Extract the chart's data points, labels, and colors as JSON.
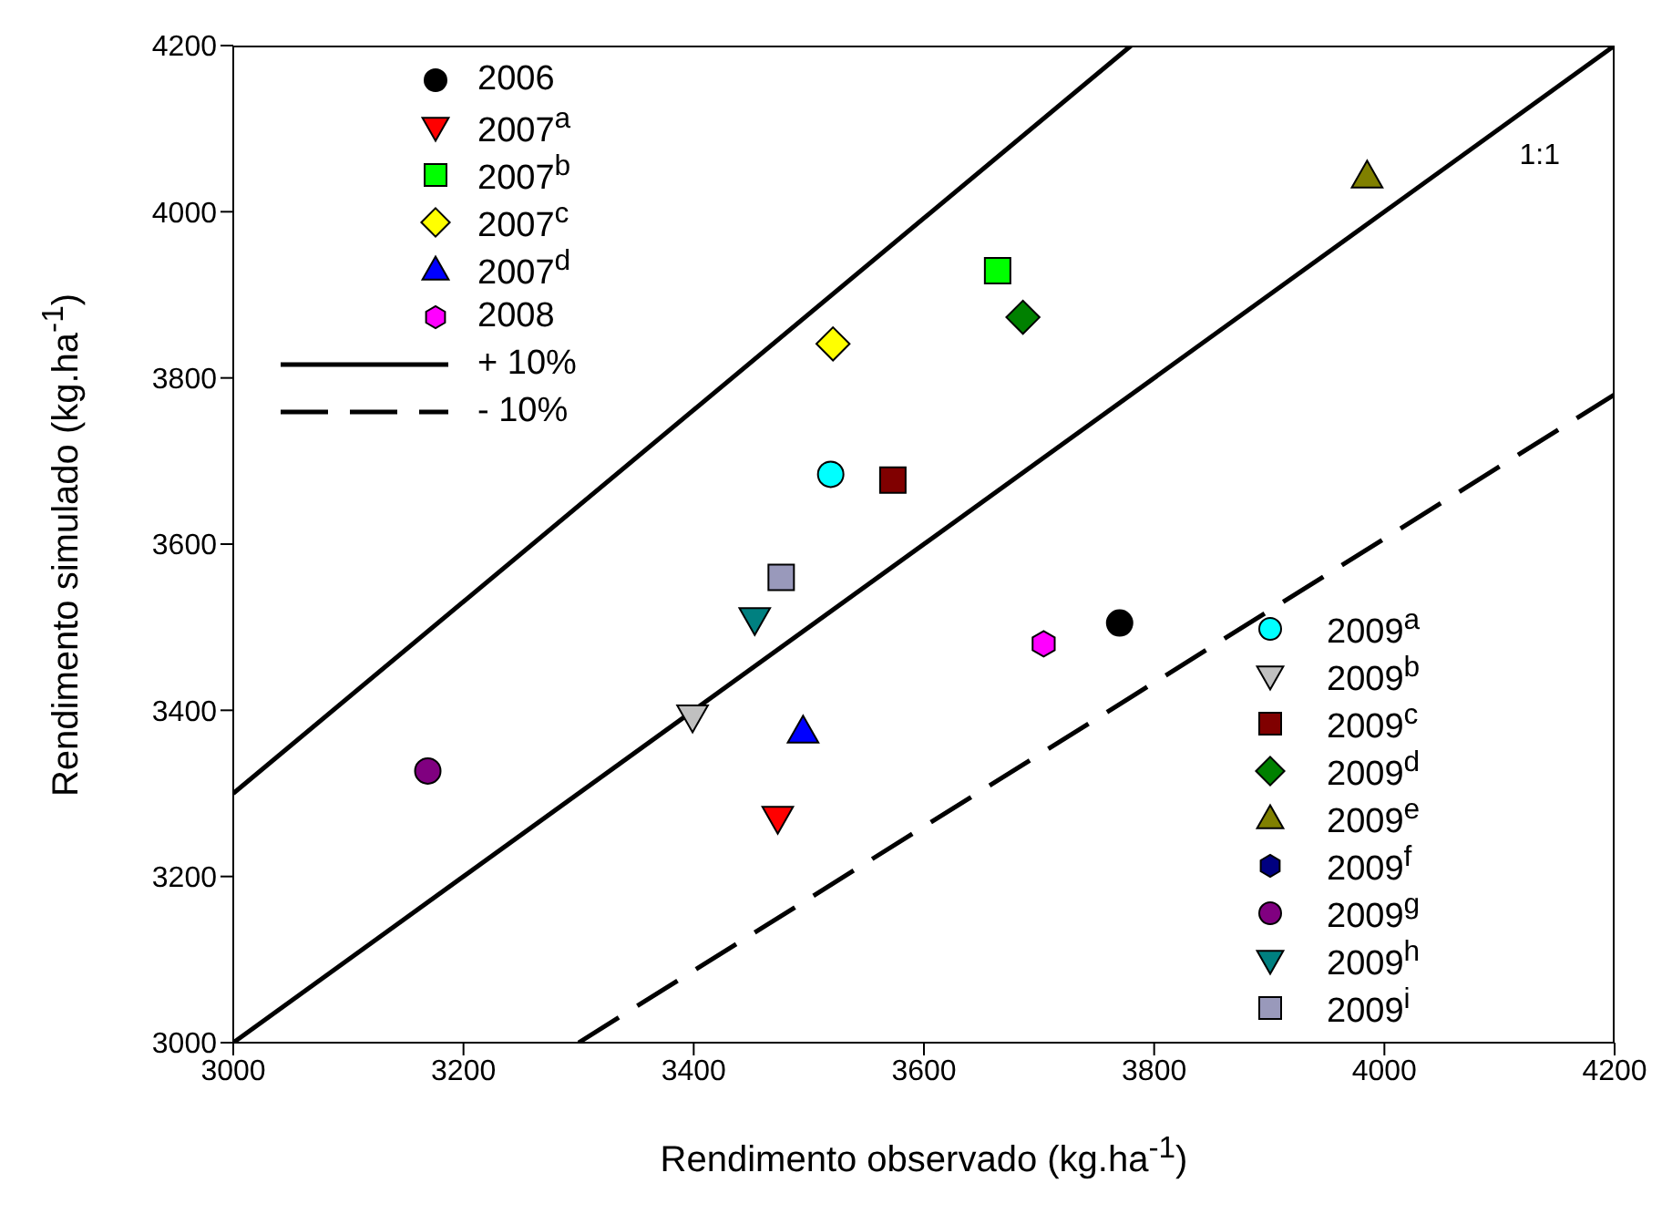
{
  "chart_data": {
    "type": "scatter",
    "xlabel": "Rendimento observado (kg.ha$^{-1}$)",
    "ylabel": "Rendimento simulado (kg.ha$^{-1}$)",
    "xlim": [
      3000,
      4200
    ],
    "xticks": [
      3000,
      3200,
      3400,
      3600,
      3800,
      4000,
      4200
    ],
    "ylim": [
      3000,
      4200
    ],
    "yticks": [
      3000,
      3200,
      3400,
      3600,
      3800,
      4000,
      4200
    ],
    "grid": false,
    "legend": "top left",
    "annotations": [
      "1:1"
    ],
    "series": [
      {
        "name": "2006",
        "color": "#000000",
        "marker": "circle",
        "x": [
          3770
        ],
        "values": [
          3505
        ]
      },
      {
        "name": "2007$^{a}$",
        "color": "#ff0000",
        "marker": "triangle-down",
        "x": [
          3473
        ],
        "values": [
          3270
        ]
      },
      {
        "name": "2007$^{b}$",
        "color": "#00ff00",
        "marker": "square",
        "x": [
          3664
        ],
        "values": [
          3929
        ]
      },
      {
        "name": "2007$^{c}$",
        "color": "#ffff00",
        "marker": "diamond",
        "x": [
          3521
        ],
        "values": [
          3841
        ]
      },
      {
        "name": "2007$^{d}$",
        "color": "#0000ff",
        "marker": "triangle",
        "x": [
          3495
        ],
        "values": [
          3375
        ]
      },
      {
        "name": "2008",
        "color": "#ff00ff",
        "x": [
          3704
        ],
        "values": [
          3480
        ]
      },
      {
        "name": "+ 10%",
        "type": "line",
        "color": "#000000",
        "line_style": "solid",
        "x": [
          3000,
          3780
        ],
        "values": [
          3300,
          4200
        ]
      },
      {
        "name": "- 10%",
        "type": "line",
        "color": "#000000",
        "line_style": "dashed",
        "x": [
          3300,
          4200
        ],
        "values": [
          3000,
          3780
        ]
      },
      {
        "name": "2009$^{a}$",
        "color": "#00ffff",
        "marker": "circle",
        "x": [
          3519
        ],
        "values": [
          3684
        ]
      },
      {
        "name": "2009$^{b}$",
        "color": "#c0c0c0",
        "marker": "triangle-down",
        "x": [
          3399
        ],
        "values": [
          3392
        ]
      },
      {
        "name": "2009$^{c}$",
        "color": "#800000",
        "marker": "square",
        "x": [
          3573
        ],
        "values": [
          3677
        ]
      },
      {
        "name": "2009$^{d}$",
        "color": "#008000",
        "marker": "diamond",
        "x": [
          3686
        ],
        "values": [
          3873
        ]
      },
      {
        "name": "2009$^{e}$",
        "color": "#808000",
        "marker": "triangle",
        "x": [
          3985
        ],
        "values": [
          4043
        ]
      },
      {
        "name": "2009$^{f}$",
        "color": "#000080"
      },
      {
        "name": "2009$^{g}$",
        "color": "#800080",
        "marker": "circle",
        "x": [
          3169
        ],
        "values": [
          3327
        ]
      },
      {
        "name": "2009$^{h}$",
        "color": "#008080",
        "marker": "triangle-down",
        "x": [
          3453
        ],
        "values": [
          3509
        ]
      },
      {
        "name": "2009$^{i}$",
        "color": "#9999bb",
        "marker": "square",
        "x": [
          3476
        ],
        "values": [
          3560
        ]
      },
      {
        "type": "line",
        "color": "#000000",
        "line_style": "solid",
        "x": [
          3000,
          4200
        ],
        "values": [
          3000,
          4200
        ]
      }
    ]
  }
}
